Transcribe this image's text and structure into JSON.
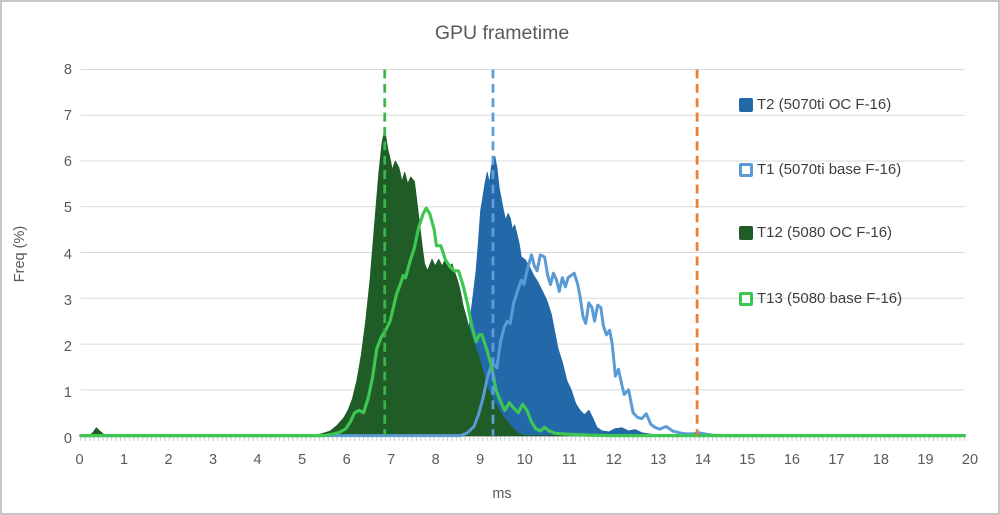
{
  "title": "GPU frametime",
  "axes": {
    "x": {
      "label": "ms",
      "min": 0,
      "max": 20,
      "ticks": [
        0,
        1,
        2,
        3,
        4,
        5,
        6,
        7,
        8,
        9,
        10,
        11,
        12,
        13,
        14,
        15,
        16,
        17,
        18,
        19,
        20
      ],
      "minor_tick_step": 0.1
    },
    "y": {
      "label": "Freq (%)",
      "min": 0,
      "max": 8,
      "ticks": [
        0,
        1,
        2,
        3,
        4,
        5,
        6,
        7,
        8
      ]
    }
  },
  "colors": {
    "grid": "#D9D9D9",
    "axis_line": "#BFBFBF",
    "minor_tick": "#C9C9C9",
    "axis_text": "#595959",
    "title_text": "#595959",
    "legend_text": "#3F3F3F",
    "background": "#FFFFFF",
    "border": "#C6C6C6"
  },
  "legend": {
    "position": "inside-right",
    "items": [
      {
        "label": "T2 (5070ti OC F-16)",
        "marker": "filled",
        "color": "#2368A8"
      },
      {
        "label": "T1 (5070ti base F-16)",
        "marker": "hollow",
        "color": "#5B9BD5"
      },
      {
        "label": "T12 (5080 OC F-16)",
        "marker": "filled",
        "color": "#1F5C26"
      },
      {
        "label": "T13 (5080 base F-16)",
        "marker": "hollow",
        "color": "#3EC653"
      }
    ]
  },
  "chart_data": {
    "type": "area",
    "title": "GPU frametime",
    "xlabel": "ms",
    "ylabel": "Freq (%)",
    "xlim": [
      0,
      20
    ],
    "ylim": [
      0,
      8
    ],
    "grid": "horizontal",
    "legend_position": "inside-right",
    "series": [
      {
        "id": "t2",
        "name": "T2 (5070ti OC F-16)",
        "style": "area",
        "color": "#2368A8",
        "points": [
          [
            0,
            0
          ],
          [
            7.5,
            0
          ],
          [
            7.7,
            0.02
          ],
          [
            7.9,
            0.05
          ],
          [
            8.1,
            0.1
          ],
          [
            8.25,
            0.2
          ],
          [
            8.35,
            0.3
          ],
          [
            8.45,
            0.5
          ],
          [
            8.55,
            0.9
          ],
          [
            8.65,
            1.5
          ],
          [
            8.75,
            2.1
          ],
          [
            8.85,
            2.8
          ],
          [
            8.95,
            3.6
          ],
          [
            9.0,
            4.2
          ],
          [
            9.05,
            4.9
          ],
          [
            9.1,
            5.2
          ],
          [
            9.15,
            5.5
          ],
          [
            9.2,
            5.75
          ],
          [
            9.25,
            5.5
          ],
          [
            9.3,
            5.9
          ],
          [
            9.37,
            6.1
          ],
          [
            9.42,
            5.85
          ],
          [
            9.47,
            5.4
          ],
          [
            9.52,
            5.15
          ],
          [
            9.57,
            4.9
          ],
          [
            9.62,
            4.7
          ],
          [
            9.67,
            4.85
          ],
          [
            9.72,
            4.75
          ],
          [
            9.77,
            4.5
          ],
          [
            9.82,
            4.6
          ],
          [
            9.87,
            4.4
          ],
          [
            9.92,
            4.2
          ],
          [
            9.97,
            3.9
          ],
          [
            10.05,
            3.85
          ],
          [
            10.15,
            3.7
          ],
          [
            10.25,
            3.5
          ],
          [
            10.35,
            3.35
          ],
          [
            10.45,
            3.15
          ],
          [
            10.55,
            2.95
          ],
          [
            10.65,
            2.65
          ],
          [
            10.72,
            2.3
          ],
          [
            10.8,
            1.9
          ],
          [
            10.9,
            1.6
          ],
          [
            11.0,
            1.2
          ],
          [
            11.1,
            1.0
          ],
          [
            11.2,
            0.7
          ],
          [
            11.3,
            0.55
          ],
          [
            11.4,
            0.45
          ],
          [
            11.5,
            0.55
          ],
          [
            11.58,
            0.4
          ],
          [
            11.68,
            0.18
          ],
          [
            11.8,
            0.1
          ],
          [
            11.95,
            0.08
          ],
          [
            12.1,
            0.15
          ],
          [
            12.25,
            0.17
          ],
          [
            12.4,
            0.1
          ],
          [
            12.55,
            0.13
          ],
          [
            12.7,
            0.06
          ],
          [
            12.9,
            0.03
          ],
          [
            13.1,
            0.01
          ],
          [
            13.3,
            0
          ],
          [
            20,
            0
          ]
        ]
      },
      {
        "id": "t12",
        "name": "T12 (5080 OC F-16)",
        "style": "area",
        "color": "#1F5C26",
        "points": [
          [
            0,
            0
          ],
          [
            0.2,
            0
          ],
          [
            0.28,
            0.07
          ],
          [
            0.35,
            0.17
          ],
          [
            0.45,
            0.08
          ],
          [
            0.55,
            0
          ],
          [
            5.2,
            0
          ],
          [
            5.45,
            0.04
          ],
          [
            5.65,
            0.1
          ],
          [
            5.8,
            0.22
          ],
          [
            5.95,
            0.38
          ],
          [
            6.05,
            0.55
          ],
          [
            6.15,
            0.8
          ],
          [
            6.25,
            1.2
          ],
          [
            6.35,
            1.75
          ],
          [
            6.45,
            2.5
          ],
          [
            6.55,
            3.4
          ],
          [
            6.65,
            4.6
          ],
          [
            6.75,
            5.75
          ],
          [
            6.82,
            6.4
          ],
          [
            6.88,
            6.68
          ],
          [
            6.95,
            6.25
          ],
          [
            7.0,
            6.05
          ],
          [
            7.05,
            5.8
          ],
          [
            7.12,
            6.0
          ],
          [
            7.2,
            5.85
          ],
          [
            7.27,
            5.55
          ],
          [
            7.33,
            5.75
          ],
          [
            7.4,
            5.5
          ],
          [
            7.47,
            5.65
          ],
          [
            7.55,
            5.55
          ],
          [
            7.62,
            5.0
          ],
          [
            7.68,
            4.5
          ],
          [
            7.73,
            4.1
          ],
          [
            7.78,
            3.75
          ],
          [
            7.85,
            3.6
          ],
          [
            7.95,
            3.85
          ],
          [
            8.02,
            3.7
          ],
          [
            8.1,
            3.85
          ],
          [
            8.18,
            3.7
          ],
          [
            8.25,
            3.85
          ],
          [
            8.32,
            3.65
          ],
          [
            8.4,
            3.75
          ],
          [
            8.47,
            3.55
          ],
          [
            8.52,
            3.4
          ],
          [
            8.58,
            3.2
          ],
          [
            8.65,
            2.85
          ],
          [
            8.72,
            2.6
          ],
          [
            8.8,
            2.3
          ],
          [
            8.9,
            2.0
          ],
          [
            9.0,
            1.75
          ],
          [
            9.1,
            1.4
          ],
          [
            9.2,
            1.05
          ],
          [
            9.3,
            0.85
          ],
          [
            9.4,
            0.68
          ],
          [
            9.5,
            0.5
          ],
          [
            9.6,
            0.37
          ],
          [
            9.7,
            0.25
          ],
          [
            9.8,
            0.14
          ],
          [
            9.9,
            0.05
          ],
          [
            10.0,
            0.01
          ],
          [
            10.15,
            0
          ],
          [
            20,
            0
          ]
        ]
      },
      {
        "id": "t1",
        "name": "T1 (5070ti base F-16)",
        "style": "line",
        "color": "#5B9BD5",
        "width": 3,
        "points": [
          [
            0,
            0
          ],
          [
            8.6,
            0
          ],
          [
            8.75,
            0.06
          ],
          [
            8.9,
            0.2
          ],
          [
            9.0,
            0.45
          ],
          [
            9.1,
            0.8
          ],
          [
            9.2,
            1.25
          ],
          [
            9.28,
            1.5
          ],
          [
            9.35,
            1.55
          ],
          [
            9.42,
            1.48
          ],
          [
            9.5,
            2.05
          ],
          [
            9.58,
            2.35
          ],
          [
            9.65,
            2.5
          ],
          [
            9.72,
            2.45
          ],
          [
            9.8,
            2.9
          ],
          [
            9.9,
            3.2
          ],
          [
            9.97,
            3.4
          ],
          [
            10.03,
            3.3
          ],
          [
            10.1,
            3.6
          ],
          [
            10.2,
            3.95
          ],
          [
            10.27,
            3.7
          ],
          [
            10.33,
            3.6
          ],
          [
            10.4,
            3.95
          ],
          [
            10.5,
            3.9
          ],
          [
            10.57,
            3.5
          ],
          [
            10.63,
            3.3
          ],
          [
            10.7,
            3.55
          ],
          [
            10.77,
            3.4
          ],
          [
            10.83,
            3.15
          ],
          [
            10.9,
            3.45
          ],
          [
            10.97,
            3.25
          ],
          [
            11.03,
            3.45
          ],
          [
            11.1,
            3.5
          ],
          [
            11.17,
            3.55
          ],
          [
            11.25,
            3.3
          ],
          [
            11.3,
            3.05
          ],
          [
            11.37,
            2.6
          ],
          [
            11.43,
            2.45
          ],
          [
            11.5,
            2.9
          ],
          [
            11.57,
            2.8
          ],
          [
            11.63,
            2.5
          ],
          [
            11.7,
            2.85
          ],
          [
            11.77,
            2.8
          ],
          [
            11.83,
            2.4
          ],
          [
            11.9,
            2.2
          ],
          [
            11.97,
            2.3
          ],
          [
            12.03,
            2.0
          ],
          [
            12.1,
            1.3
          ],
          [
            12.17,
            1.45
          ],
          [
            12.25,
            1.1
          ],
          [
            12.3,
            0.9
          ],
          [
            12.4,
            1.0
          ],
          [
            12.5,
            0.5
          ],
          [
            12.6,
            0.4
          ],
          [
            12.7,
            0.37
          ],
          [
            12.8,
            0.48
          ],
          [
            12.9,
            0.25
          ],
          [
            13.0,
            0.18
          ],
          [
            13.1,
            0.14
          ],
          [
            13.25,
            0.2
          ],
          [
            13.4,
            0.1
          ],
          [
            13.55,
            0.06
          ],
          [
            13.7,
            0.04
          ],
          [
            13.85,
            0.04
          ],
          [
            14.0,
            0.06
          ],
          [
            14.15,
            0.03
          ],
          [
            14.3,
            0.01
          ],
          [
            14.6,
            0
          ],
          [
            20,
            0
          ]
        ]
      },
      {
        "id": "t13",
        "name": "T13 (5080 base F-16)",
        "style": "line",
        "color": "#3EC653",
        "width": 3.2,
        "points": [
          [
            0,
            0
          ],
          [
            5.5,
            0
          ],
          [
            5.7,
            0.03
          ],
          [
            5.85,
            0.07
          ],
          [
            6.0,
            0.15
          ],
          [
            6.1,
            0.3
          ],
          [
            6.2,
            0.5
          ],
          [
            6.3,
            0.55
          ],
          [
            6.4,
            0.5
          ],
          [
            6.5,
            0.8
          ],
          [
            6.6,
            1.25
          ],
          [
            6.7,
            1.9
          ],
          [
            6.8,
            2.15
          ],
          [
            6.9,
            2.3
          ],
          [
            7.0,
            2.5
          ],
          [
            7.05,
            2.7
          ],
          [
            7.15,
            3.1
          ],
          [
            7.25,
            3.35
          ],
          [
            7.3,
            3.5
          ],
          [
            7.35,
            3.45
          ],
          [
            7.45,
            3.8
          ],
          [
            7.55,
            4.1
          ],
          [
            7.65,
            4.55
          ],
          [
            7.75,
            4.85
          ],
          [
            7.82,
            4.97
          ],
          [
            7.9,
            4.85
          ],
          [
            8.0,
            4.5
          ],
          [
            8.05,
            4.15
          ],
          [
            8.15,
            4.15
          ],
          [
            8.25,
            3.85
          ],
          [
            8.35,
            3.7
          ],
          [
            8.45,
            3.6
          ],
          [
            8.55,
            3.6
          ],
          [
            8.65,
            3.3
          ],
          [
            8.75,
            2.9
          ],
          [
            8.85,
            2.4
          ],
          [
            8.95,
            2.05
          ],
          [
            9.02,
            2.2
          ],
          [
            9.08,
            2.2
          ],
          [
            9.2,
            1.85
          ],
          [
            9.3,
            1.5
          ],
          [
            9.4,
            1.0
          ],
          [
            9.5,
            0.75
          ],
          [
            9.6,
            0.55
          ],
          [
            9.7,
            0.72
          ],
          [
            9.8,
            0.6
          ],
          [
            9.9,
            0.5
          ],
          [
            10.0,
            0.68
          ],
          [
            10.1,
            0.55
          ],
          [
            10.2,
            0.3
          ],
          [
            10.3,
            0.15
          ],
          [
            10.4,
            0.1
          ],
          [
            10.5,
            0.18
          ],
          [
            10.6,
            0.1
          ],
          [
            10.75,
            0.05
          ],
          [
            11.0,
            0.03
          ],
          [
            11.5,
            0.01
          ],
          [
            12.0,
            0
          ],
          [
            20,
            0
          ]
        ]
      }
    ],
    "vlines": [
      {
        "x": 6.88,
        "style": "dashed",
        "color": "#3BB54B"
      },
      {
        "x": 9.33,
        "style": "dashed",
        "color": "#5E9FD9"
      },
      {
        "x": 13.95,
        "style": "dashed",
        "color": "#ED7D31"
      }
    ]
  }
}
